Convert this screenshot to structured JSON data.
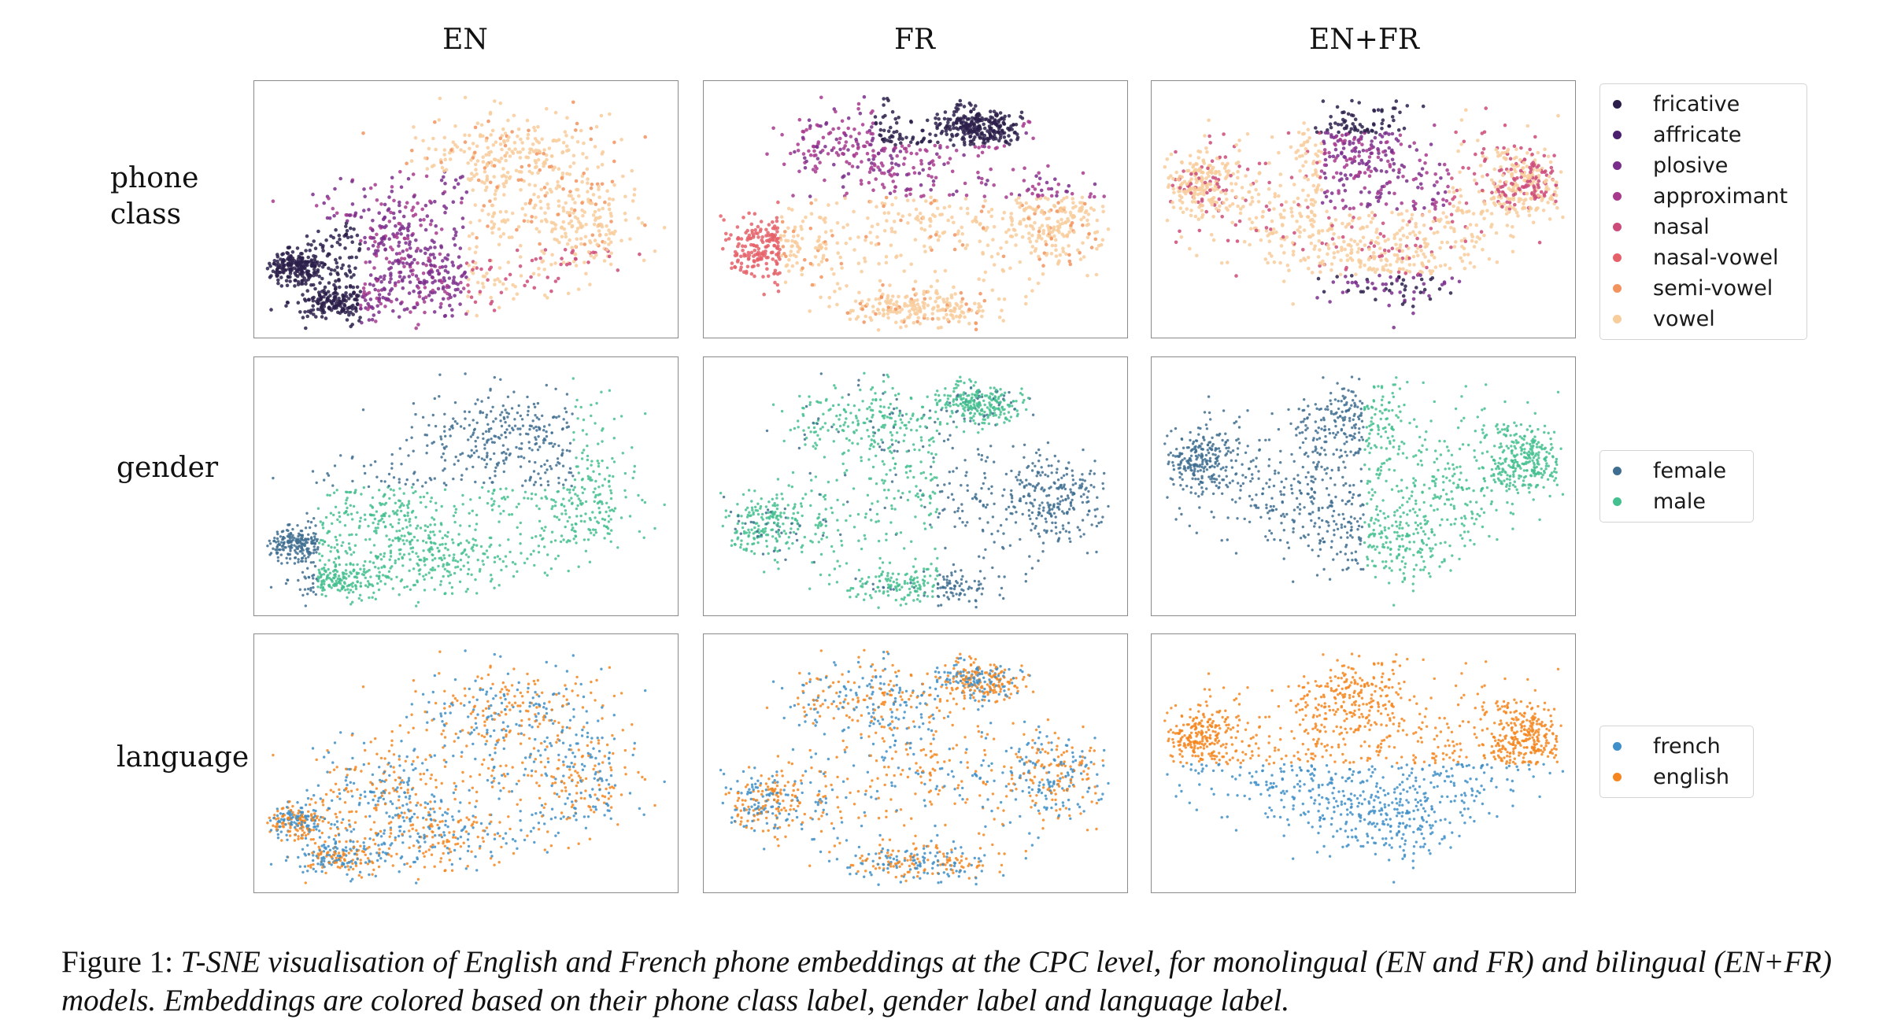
{
  "column_labels": [
    "EN",
    "FR",
    "EN+FR"
  ],
  "row_labels": [
    [
      "phone",
      "class"
    ],
    [
      "gender"
    ],
    [
      "language"
    ]
  ],
  "caption": {
    "prefix": "Figure 1:",
    "text": "T-SNE visualisation of English and French phone embeddings at the CPC level, for monolingual (EN and FR) and bilingual (EN+FR) models. Embeddings are colored based on their phone class label, gender label and language label."
  },
  "legends": {
    "phone_class": [
      {
        "label": "fricative",
        "color": "#2b1f4a"
      },
      {
        "label": "affricate",
        "color": "#4a1f6e"
      },
      {
        "label": "plosive",
        "color": "#7a2e8c"
      },
      {
        "label": "approximant",
        "color": "#a83a8e"
      },
      {
        "label": "nasal",
        "color": "#cc4b7a"
      },
      {
        "label": "nasal-vowel",
        "color": "#e5616a"
      },
      {
        "label": "semi-vowel",
        "color": "#f2935e"
      },
      {
        "label": "vowel",
        "color": "#f8cd9c"
      }
    ],
    "gender": [
      {
        "label": "female",
        "color": "#3f6e90"
      },
      {
        "label": "male",
        "color": "#44bf8f"
      }
    ],
    "language": [
      {
        "label": "french",
        "color": "#3f8fc8"
      },
      {
        "label": "english",
        "color": "#f5861f"
      }
    ]
  },
  "chart_data": [
    {
      "type": "scatter",
      "model": "EN",
      "coloring": "phone class",
      "series": [
        "fricative",
        "affricate",
        "plosive",
        "approximant",
        "nasal",
        "nasal-vowel",
        "semi-vowel",
        "vowel"
      ]
    },
    {
      "type": "scatter",
      "model": "FR",
      "coloring": "phone class",
      "series": [
        "fricative",
        "affricate",
        "plosive",
        "approximant",
        "nasal",
        "nasal-vowel",
        "semi-vowel",
        "vowel"
      ]
    },
    {
      "type": "scatter",
      "model": "EN+FR",
      "coloring": "phone class",
      "series": [
        "fricative",
        "affricate",
        "plosive",
        "approximant",
        "nasal",
        "nasal-vowel",
        "semi-vowel",
        "vowel"
      ]
    },
    {
      "type": "scatter",
      "model": "EN",
      "coloring": "gender",
      "series": [
        "female",
        "male"
      ]
    },
    {
      "type": "scatter",
      "model": "FR",
      "coloring": "gender",
      "series": [
        "female",
        "male"
      ]
    },
    {
      "type": "scatter",
      "model": "EN+FR",
      "coloring": "gender",
      "series": [
        "female",
        "male"
      ]
    },
    {
      "type": "scatter",
      "model": "EN",
      "coloring": "language",
      "series": [
        "french",
        "english"
      ]
    },
    {
      "type": "scatter",
      "model": "FR",
      "coloring": "language",
      "series": [
        "french",
        "english"
      ]
    },
    {
      "type": "scatter",
      "model": "EN+FR",
      "coloring": "language",
      "series": [
        "french",
        "english"
      ]
    }
  ]
}
